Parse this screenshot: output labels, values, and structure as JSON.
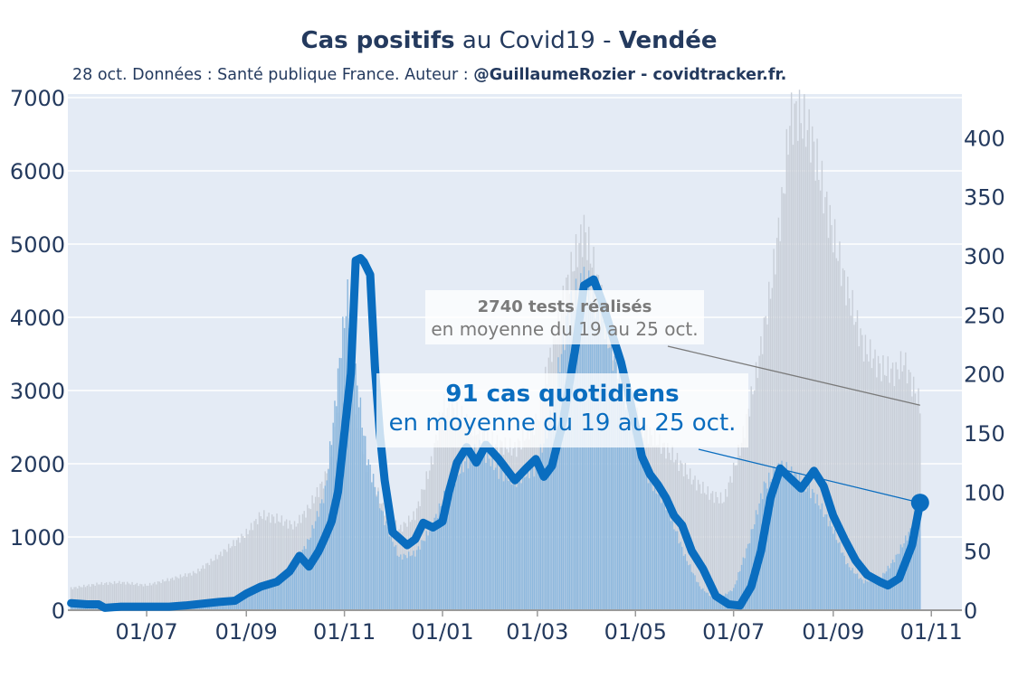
{
  "header": {
    "title_bold_1": "Cas positifs",
    "title_mid": " au Covid19 - ",
    "title_bold_2": "Vendée",
    "subtitle_plain": "28 oct. Données : Santé publique France. Auteur : ",
    "subtitle_bold": "@GuillaumeRozier - covidtracker.fr."
  },
  "annotations": {
    "tests_line1": "2740 tests réalisés",
    "tests_line2": "en moyenne du 19 au 25 oct.",
    "cases_line1": "91 cas quotidiens",
    "cases_line2": "en moyenne du 19 au 25 oct."
  },
  "colors": {
    "plot_bg": "#e4ebf5",
    "grid": "#ffffff",
    "cases_line": "#0a6dbf",
    "cases_bars": "#8db8de",
    "tests_bars": "#c9cfd8",
    "text": "#243a5e",
    "annotation_tests": "#7a7a7a"
  },
  "chart_data": {
    "type": "line",
    "x_tick_labels": [
      "01/07",
      "01/09",
      "01/11",
      "01/01",
      "01/03",
      "01/05",
      "01/07",
      "01/09",
      "01/11"
    ],
    "x_tick_dates": [
      "2020-07-01",
      "2020-09-01",
      "2020-11-01",
      "2021-01-01",
      "2021-03-01",
      "2021-05-01",
      "2021-07-01",
      "2021-09-01",
      "2021-11-01"
    ],
    "xlim": [
      "2020-05-13",
      "2021-11-20"
    ],
    "y_left_ticks": [
      0,
      1000,
      2000,
      3000,
      4000,
      5000,
      6000,
      7000
    ],
    "y_left_lim": [
      0,
      7050
    ],
    "y_right_ticks": [
      0,
      50,
      100,
      150,
      200,
      250,
      300,
      350,
      400
    ],
    "y_right_lim": [
      0,
      437
    ],
    "grid": true,
    "series": [
      {
        "axis": "left",
        "style": "bars",
        "color": "#c9cfd8",
        "points": [
          [
            "2020-05-15",
            300
          ],
          [
            "2020-06-01",
            360
          ],
          [
            "2020-06-15",
            380
          ],
          [
            "2020-07-01",
            340
          ],
          [
            "2020-07-15",
            420
          ],
          [
            "2020-08-01",
            520
          ],
          [
            "2020-08-15",
            750
          ],
          [
            "2020-09-01",
            1050
          ],
          [
            "2020-09-10",
            1300
          ],
          [
            "2020-09-20",
            1250
          ],
          [
            "2020-10-01",
            1150
          ],
          [
            "2020-10-10",
            1400
          ],
          [
            "2020-10-20",
            1800
          ],
          [
            "2020-10-28",
            2600
          ],
          [
            "2020-11-05",
            2800
          ],
          [
            "2020-11-15",
            2000
          ],
          [
            "2020-11-25",
            1400
          ],
          [
            "2020-12-05",
            1100
          ],
          [
            "2020-12-15",
            1300
          ],
          [
            "2020-12-25",
            2000
          ],
          [
            "2021-01-01",
            2800
          ],
          [
            "2021-01-10",
            2700
          ],
          [
            "2021-01-20",
            2500
          ],
          [
            "2021-02-01",
            2300
          ],
          [
            "2021-02-15",
            2200
          ],
          [
            "2021-03-01",
            2600
          ],
          [
            "2021-03-10",
            3600
          ],
          [
            "2021-03-20",
            4500
          ],
          [
            "2021-03-30",
            5200
          ],
          [
            "2021-04-05",
            4700
          ],
          [
            "2021-04-15",
            3800
          ],
          [
            "2021-04-25",
            2900
          ],
          [
            "2021-05-05",
            2500
          ],
          [
            "2021-05-15",
            2300
          ],
          [
            "2021-05-25",
            2100
          ],
          [
            "2021-06-05",
            1800
          ],
          [
            "2021-06-15",
            1600
          ],
          [
            "2021-06-25",
            1500
          ],
          [
            "2021-07-05",
            2200
          ],
          [
            "2021-07-15",
            3200
          ],
          [
            "2021-07-25",
            4500
          ],
          [
            "2021-08-01",
            5700
          ],
          [
            "2021-08-05",
            6700
          ],
          [
            "2021-08-10",
            6800
          ],
          [
            "2021-08-18",
            6500
          ],
          [
            "2021-08-28",
            5500
          ],
          [
            "2021-09-08",
            4500
          ],
          [
            "2021-09-20",
            3600
          ],
          [
            "2021-10-01",
            3300
          ],
          [
            "2021-10-10",
            3250
          ],
          [
            "2021-10-15",
            3400
          ],
          [
            "2021-10-25",
            2800
          ]
        ]
      },
      {
        "axis": "right",
        "style": "bars",
        "color": "#8db8de",
        "points": [
          [
            "2020-05-15",
            5
          ],
          [
            "2020-06-01",
            3
          ],
          [
            "2020-06-15",
            3
          ],
          [
            "2020-07-01",
            3
          ],
          [
            "2020-07-15",
            4
          ],
          [
            "2020-08-01",
            5
          ],
          [
            "2020-08-15",
            7
          ],
          [
            "2020-09-01",
            14
          ],
          [
            "2020-09-15",
            20
          ],
          [
            "2020-10-01",
            38
          ],
          [
            "2020-10-10",
            60
          ],
          [
            "2020-10-20",
            100
          ],
          [
            "2020-10-26",
            170
          ],
          [
            "2020-10-30",
            225
          ],
          [
            "2020-11-03",
            265
          ],
          [
            "2020-11-08",
            200
          ],
          [
            "2020-11-15",
            130
          ],
          [
            "2020-11-25",
            80
          ],
          [
            "2020-12-05",
            45
          ],
          [
            "2020-12-15",
            48
          ],
          [
            "2020-12-25",
            70
          ],
          [
            "2021-01-05",
            105
          ],
          [
            "2021-01-15",
            125
          ],
          [
            "2021-01-25",
            138
          ],
          [
            "2021-02-05",
            118
          ],
          [
            "2021-02-15",
            110
          ],
          [
            "2021-03-01",
            122
          ],
          [
            "2021-03-10",
            170
          ],
          [
            "2021-03-20",
            250
          ],
          [
            "2021-03-30",
            280
          ],
          [
            "2021-04-10",
            250
          ],
          [
            "2021-04-20",
            200
          ],
          [
            "2021-05-01",
            150
          ],
          [
            "2021-05-10",
            110
          ],
          [
            "2021-05-20",
            90
          ],
          [
            "2021-06-01",
            45
          ],
          [
            "2021-06-10",
            20
          ],
          [
            "2021-06-20",
            8
          ],
          [
            "2021-07-01",
            18
          ],
          [
            "2021-07-10",
            55
          ],
          [
            "2021-07-20",
            105
          ],
          [
            "2021-07-30",
            122
          ],
          [
            "2021-08-10",
            112
          ],
          [
            "2021-08-20",
            98
          ],
          [
            "2021-09-01",
            68
          ],
          [
            "2021-09-10",
            38
          ],
          [
            "2021-09-20",
            24
          ],
          [
            "2021-10-01",
            28
          ],
          [
            "2021-10-10",
            45
          ],
          [
            "2021-10-20",
            70
          ],
          [
            "2021-10-25",
            91
          ]
        ]
      },
      {
        "axis": "right",
        "style": "line",
        "color": "#0a6dbf",
        "points": [
          [
            "2020-05-15",
            6
          ],
          [
            "2020-05-25",
            5
          ],
          [
            "2020-06-01",
            5
          ],
          [
            "2020-06-05",
            2
          ],
          [
            "2020-06-15",
            3
          ],
          [
            "2020-07-01",
            3
          ],
          [
            "2020-07-15",
            3
          ],
          [
            "2020-07-25",
            4
          ],
          [
            "2020-08-15",
            7
          ],
          [
            "2020-08-25",
            8
          ],
          [
            "2020-09-01",
            14
          ],
          [
            "2020-09-10",
            20
          ],
          [
            "2020-09-20",
            24
          ],
          [
            "2020-09-28",
            33
          ],
          [
            "2020-10-04",
            46
          ],
          [
            "2020-10-10",
            37
          ],
          [
            "2020-10-16",
            50
          ],
          [
            "2020-10-20",
            62
          ],
          [
            "2020-10-24",
            75
          ],
          [
            "2020-10-28",
            100
          ],
          [
            "2020-11-01",
            150
          ],
          [
            "2020-11-05",
            200
          ],
          [
            "2020-11-08",
            296
          ],
          [
            "2020-11-11",
            298
          ],
          [
            "2020-11-13",
            295
          ],
          [
            "2020-11-17",
            284
          ],
          [
            "2020-11-20",
            205
          ],
          [
            "2020-11-23",
            150
          ],
          [
            "2020-11-26",
            110
          ],
          [
            "2020-12-01",
            66
          ],
          [
            "2020-12-06",
            60
          ],
          [
            "2020-12-10",
            55
          ],
          [
            "2020-12-15",
            60
          ],
          [
            "2020-12-20",
            74
          ],
          [
            "2020-12-26",
            70
          ],
          [
            "2021-01-01",
            75
          ],
          [
            "2021-01-05",
            100
          ],
          [
            "2021-01-10",
            125
          ],
          [
            "2021-01-16",
            138
          ],
          [
            "2021-01-22",
            125
          ],
          [
            "2021-01-28",
            140
          ],
          [
            "2021-02-05",
            128
          ],
          [
            "2021-02-15",
            110
          ],
          [
            "2021-02-22",
            120
          ],
          [
            "2021-02-28",
            128
          ],
          [
            "2021-03-05",
            113
          ],
          [
            "2021-03-10",
            122
          ],
          [
            "2021-03-17",
            160
          ],
          [
            "2021-03-25",
            225
          ],
          [
            "2021-03-30",
            275
          ],
          [
            "2021-04-05",
            280
          ],
          [
            "2021-04-10",
            262
          ],
          [
            "2021-04-15",
            240
          ],
          [
            "2021-04-22",
            210
          ],
          [
            "2021-04-28",
            175
          ],
          [
            "2021-05-05",
            130
          ],
          [
            "2021-05-10",
            115
          ],
          [
            "2021-05-15",
            106
          ],
          [
            "2021-05-20",
            95
          ],
          [
            "2021-05-25",
            80
          ],
          [
            "2021-05-30",
            72
          ],
          [
            "2021-06-05",
            50
          ],
          [
            "2021-06-12",
            35
          ],
          [
            "2021-06-20",
            12
          ],
          [
            "2021-06-28",
            5
          ],
          [
            "2021-07-05",
            4
          ],
          [
            "2021-07-12",
            20
          ],
          [
            "2021-07-18",
            50
          ],
          [
            "2021-07-24",
            95
          ],
          [
            "2021-07-30",
            120
          ],
          [
            "2021-08-05",
            112
          ],
          [
            "2021-08-12",
            103
          ],
          [
            "2021-08-20",
            118
          ],
          [
            "2021-08-26",
            105
          ],
          [
            "2021-09-01",
            80
          ],
          [
            "2021-09-08",
            60
          ],
          [
            "2021-09-15",
            42
          ],
          [
            "2021-09-22",
            30
          ],
          [
            "2021-09-30",
            24
          ],
          [
            "2021-10-05",
            21
          ],
          [
            "2021-10-12",
            27
          ],
          [
            "2021-10-20",
            55
          ],
          [
            "2021-10-25",
            91
          ]
        ]
      }
    ]
  }
}
